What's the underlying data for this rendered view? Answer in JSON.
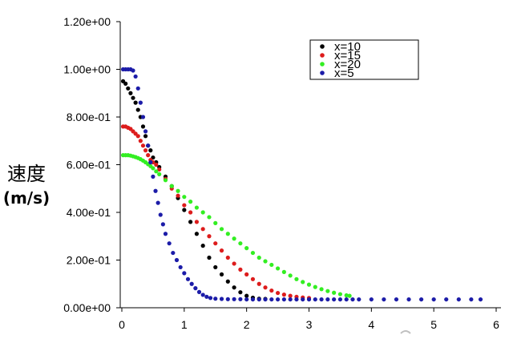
{
  "chart_data": {
    "type": "scatter",
    "ylabel_line1": "速度",
    "ylabel_line2": "(m/s)",
    "xlim": [
      0,
      6
    ],
    "ylim": [
      0,
      1.2
    ],
    "x_ticks": [
      0,
      1,
      2,
      3,
      4,
      5,
      6
    ],
    "x_tick_labels": [
      "0",
      "1",
      "2",
      "3",
      "4",
      "5",
      "6"
    ],
    "y_ticks": [
      0,
      0.2,
      0.4,
      0.6,
      0.8,
      1.0,
      1.2
    ],
    "y_tick_labels": [
      "0.00e+00",
      "2.00e-01",
      "4.00e-01",
      "6.00e-01",
      "8.00e-01",
      "1.00e+00",
      "1.20e+00"
    ],
    "grid": false,
    "legend_position": "top-right",
    "series": [
      {
        "name": "x=10",
        "color": "#000000",
        "points": [
          [
            0.02,
            0.95
          ],
          [
            0.06,
            0.94
          ],
          [
            0.1,
            0.92
          ],
          [
            0.14,
            0.9
          ],
          [
            0.18,
            0.88
          ],
          [
            0.22,
            0.86
          ],
          [
            0.26,
            0.83
          ],
          [
            0.3,
            0.8
          ],
          [
            0.34,
            0.76
          ],
          [
            0.38,
            0.72
          ],
          [
            0.42,
            0.68
          ],
          [
            0.46,
            0.66
          ],
          [
            0.5,
            0.63
          ],
          [
            0.55,
            0.61
          ],
          [
            0.6,
            0.59
          ],
          [
            0.7,
            0.55
          ],
          [
            0.8,
            0.51
          ],
          [
            0.9,
            0.46
          ],
          [
            1.0,
            0.41
          ],
          [
            1.1,
            0.36
          ],
          [
            1.2,
            0.31
          ],
          [
            1.3,
            0.26
          ],
          [
            1.4,
            0.21
          ],
          [
            1.5,
            0.17
          ],
          [
            1.6,
            0.14
          ],
          [
            1.7,
            0.11
          ],
          [
            1.8,
            0.085
          ],
          [
            1.9,
            0.065
          ],
          [
            2.0,
            0.05
          ],
          [
            2.1,
            0.042
          ],
          [
            2.2,
            0.038
          ],
          [
            2.3,
            0.037
          ]
        ]
      },
      {
        "name": "x=15",
        "color": "#dd1c1c",
        "points": [
          [
            0.02,
            0.76
          ],
          [
            0.06,
            0.76
          ],
          [
            0.1,
            0.755
          ],
          [
            0.14,
            0.75
          ],
          [
            0.18,
            0.74
          ],
          [
            0.22,
            0.73
          ],
          [
            0.26,
            0.72
          ],
          [
            0.3,
            0.7
          ],
          [
            0.34,
            0.68
          ],
          [
            0.38,
            0.66
          ],
          [
            0.42,
            0.64
          ],
          [
            0.46,
            0.62
          ],
          [
            0.5,
            0.61
          ],
          [
            0.55,
            0.6
          ],
          [
            0.6,
            0.58
          ],
          [
            0.7,
            0.54
          ],
          [
            0.8,
            0.5
          ],
          [
            0.9,
            0.47
          ],
          [
            1.0,
            0.43
          ],
          [
            1.1,
            0.4
          ],
          [
            1.2,
            0.36
          ],
          [
            1.3,
            0.33
          ],
          [
            1.4,
            0.3
          ],
          [
            1.5,
            0.27
          ],
          [
            1.6,
            0.24
          ],
          [
            1.7,
            0.21
          ],
          [
            1.8,
            0.185
          ],
          [
            1.9,
            0.16
          ],
          [
            2.0,
            0.14
          ],
          [
            2.1,
            0.12
          ],
          [
            2.2,
            0.1
          ],
          [
            2.3,
            0.085
          ],
          [
            2.4,
            0.072
          ],
          [
            2.5,
            0.062
          ],
          [
            2.6,
            0.055
          ],
          [
            2.7,
            0.05
          ],
          [
            2.8,
            0.046
          ],
          [
            2.9,
            0.043
          ],
          [
            3.0,
            0.041
          ]
        ]
      },
      {
        "name": "x=20",
        "color": "#33ee22",
        "points": [
          [
            0.02,
            0.64
          ],
          [
            0.06,
            0.64
          ],
          [
            0.1,
            0.64
          ],
          [
            0.14,
            0.638
          ],
          [
            0.18,
            0.635
          ],
          [
            0.22,
            0.632
          ],
          [
            0.26,
            0.628
          ],
          [
            0.3,
            0.623
          ],
          [
            0.34,
            0.617
          ],
          [
            0.38,
            0.61
          ],
          [
            0.42,
            0.602
          ],
          [
            0.46,
            0.594
          ],
          [
            0.5,
            0.585
          ],
          [
            0.55,
            0.572
          ],
          [
            0.6,
            0.56
          ],
          [
            0.7,
            0.535
          ],
          [
            0.8,
            0.51
          ],
          [
            0.9,
            0.49
          ],
          [
            1.0,
            0.465
          ],
          [
            1.1,
            0.445
          ],
          [
            1.2,
            0.42
          ],
          [
            1.3,
            0.4
          ],
          [
            1.4,
            0.38
          ],
          [
            1.5,
            0.355
          ],
          [
            1.6,
            0.33
          ],
          [
            1.7,
            0.31
          ],
          [
            1.8,
            0.29
          ],
          [
            1.9,
            0.27
          ],
          [
            2.0,
            0.25
          ],
          [
            2.1,
            0.23
          ],
          [
            2.2,
            0.21
          ],
          [
            2.3,
            0.195
          ],
          [
            2.4,
            0.18
          ],
          [
            2.5,
            0.165
          ],
          [
            2.6,
            0.15
          ],
          [
            2.7,
            0.135
          ],
          [
            2.8,
            0.12
          ],
          [
            2.9,
            0.108
          ],
          [
            3.0,
            0.097
          ],
          [
            3.1,
            0.087
          ],
          [
            3.2,
            0.078
          ],
          [
            3.3,
            0.07
          ],
          [
            3.4,
            0.063
          ],
          [
            3.5,
            0.057
          ],
          [
            3.6,
            0.052
          ],
          [
            3.65,
            0.05
          ]
        ]
      },
      {
        "name": "x=5",
        "color": "#1c1ca8",
        "points": [
          [
            0.02,
            1.0
          ],
          [
            0.06,
            1.0
          ],
          [
            0.1,
            1.0
          ],
          [
            0.14,
            1.0
          ],
          [
            0.18,
            0.995
          ],
          [
            0.22,
            0.97
          ],
          [
            0.26,
            0.92
          ],
          [
            0.3,
            0.86
          ],
          [
            0.34,
            0.8
          ],
          [
            0.38,
            0.74
          ],
          [
            0.42,
            0.68
          ],
          [
            0.46,
            0.61
          ],
          [
            0.5,
            0.55
          ],
          [
            0.54,
            0.49
          ],
          [
            0.58,
            0.44
          ],
          [
            0.62,
            0.39
          ],
          [
            0.66,
            0.35
          ],
          [
            0.7,
            0.31
          ],
          [
            0.76,
            0.27
          ],
          [
            0.82,
            0.23
          ],
          [
            0.88,
            0.2
          ],
          [
            0.94,
            0.17
          ],
          [
            1.0,
            0.145
          ],
          [
            1.06,
            0.12
          ],
          [
            1.12,
            0.1
          ],
          [
            1.18,
            0.082
          ],
          [
            1.24,
            0.066
          ],
          [
            1.3,
            0.054
          ],
          [
            1.36,
            0.046
          ],
          [
            1.42,
            0.041
          ],
          [
            1.5,
            0.038
          ],
          [
            1.6,
            0.037
          ],
          [
            1.7,
            0.036
          ],
          [
            1.8,
            0.036
          ],
          [
            1.9,
            0.036
          ],
          [
            2.0,
            0.035
          ],
          [
            2.1,
            0.035
          ],
          [
            2.2,
            0.035
          ],
          [
            2.3,
            0.035
          ],
          [
            2.4,
            0.035
          ],
          [
            2.5,
            0.035
          ],
          [
            2.6,
            0.035
          ],
          [
            2.7,
            0.035
          ],
          [
            2.8,
            0.035
          ],
          [
            2.9,
            0.035
          ],
          [
            3.0,
            0.035
          ],
          [
            3.1,
            0.035
          ],
          [
            3.2,
            0.035
          ],
          [
            3.3,
            0.035
          ],
          [
            3.4,
            0.035
          ],
          [
            3.5,
            0.035
          ],
          [
            3.6,
            0.035
          ],
          [
            3.7,
            0.035
          ],
          [
            3.8,
            0.035
          ],
          [
            4.0,
            0.035
          ],
          [
            4.2,
            0.035
          ],
          [
            4.4,
            0.035
          ],
          [
            4.6,
            0.035
          ],
          [
            4.8,
            0.035
          ],
          [
            5.0,
            0.035
          ],
          [
            5.2,
            0.035
          ],
          [
            5.4,
            0.035
          ],
          [
            5.6,
            0.035
          ],
          [
            5.75,
            0.035
          ]
        ]
      }
    ]
  }
}
